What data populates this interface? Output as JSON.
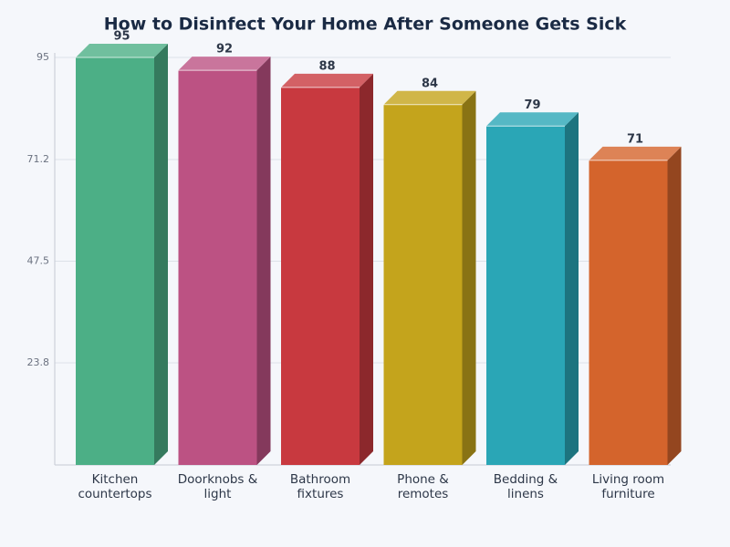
{
  "chart_data": {
    "type": "bar3d",
    "title": "How to Disinfect Your Home After Someone Gets Sick",
    "categories": [
      "Kitchen countertops",
      "Doorknobs & light",
      "Bathroom fixtures",
      "Phone & remotes",
      "Bedding & linens",
      "Living room furniture"
    ],
    "values": [
      95,
      92,
      88,
      84,
      79,
      71
    ],
    "colors": [
      "#4caf86",
      "#bc5283",
      "#c8393f",
      "#c4a41c",
      "#2aa6b6",
      "#d4642c"
    ],
    "ylim": [
      0,
      95
    ],
    "yticks": [
      23.8,
      47.5,
      71.2,
      95
    ],
    "grid": true
  }
}
